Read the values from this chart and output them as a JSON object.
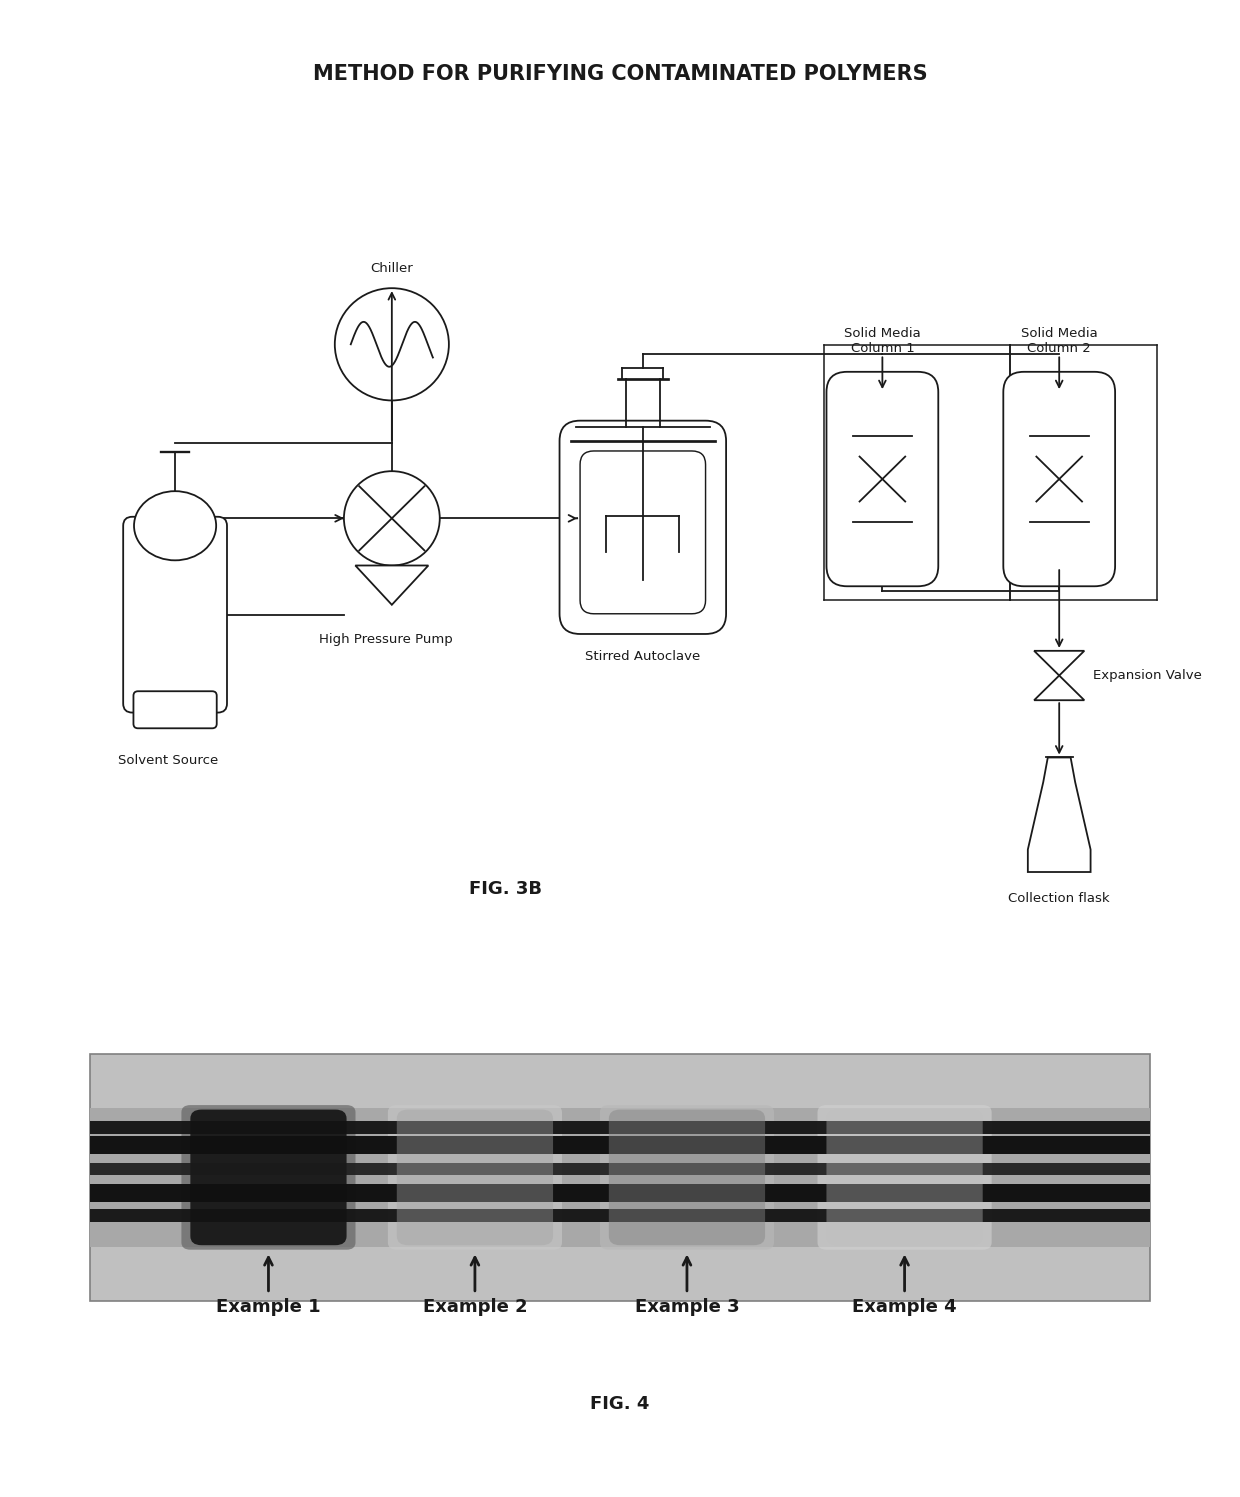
{
  "title": "METHOD FOR PURIFYING CONTAMINATED POLYMERS",
  "fig3b_label": "FIG. 3B",
  "fig4_label": "FIG. 4",
  "labels": {
    "solvent_source": "Solvent Source",
    "chiller": "Chiller",
    "high_pressure_pump": "High Pressure Pump",
    "stirred_autoclave": "Stirred Autoclave",
    "solid_media_col1": "Solid Media\nColumn 1",
    "solid_media_col2": "Solid Media\nColumn 2",
    "expansion_valve": "Expansion Valve",
    "collection_flask": "Collection flask"
  },
  "examples": [
    "Example 1",
    "Example 2",
    "Example 3",
    "Example 4"
  ],
  "background_color": "#ffffff",
  "line_color": "#1a1a1a",
  "title_fontsize": 15,
  "label_fontsize": 9.5,
  "example_fontsize": 13,
  "fig_label_fontsize": 13
}
